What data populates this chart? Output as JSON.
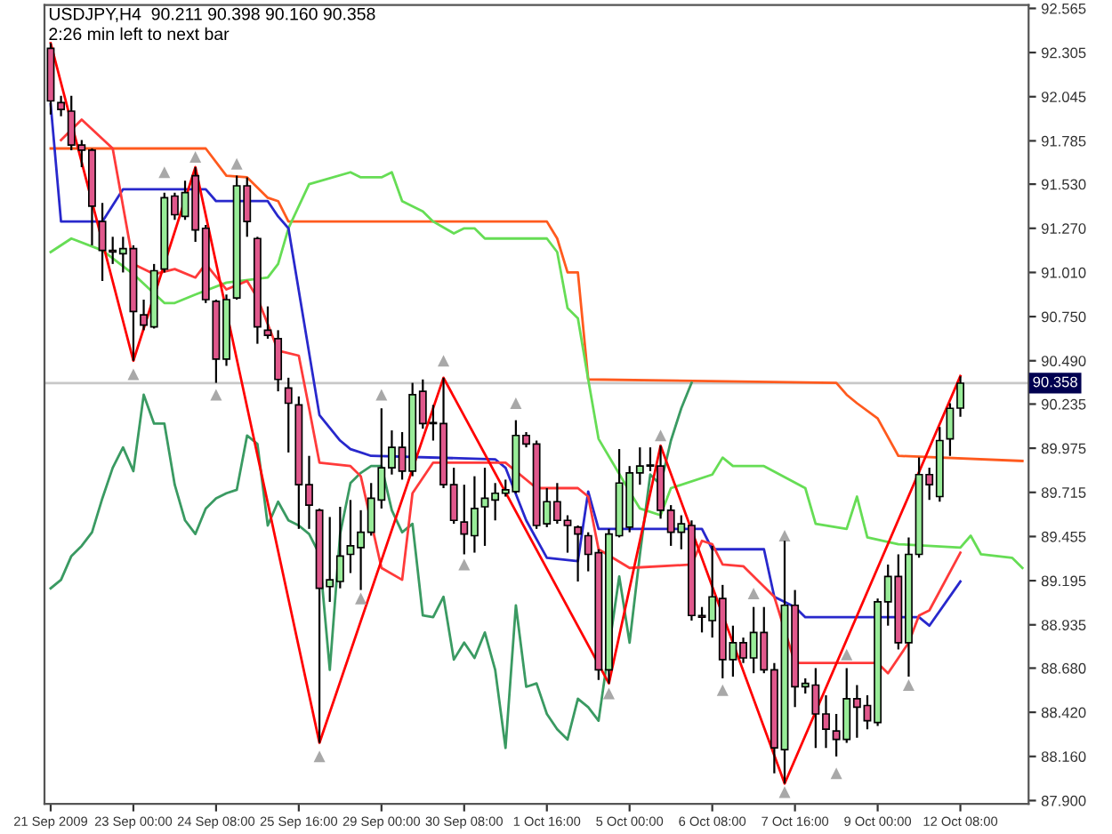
{
  "chart_data": {
    "type": "candlestick",
    "title": "USDJPY,H4  90.211 90.398 90.160 90.358",
    "annotations": [
      "2:26 min left to next bar"
    ],
    "categories": [
      "21 Sep 2009",
      null,
      null,
      null,
      null,
      null,
      null,
      null,
      "23 Sep 00:00",
      null,
      null,
      null,
      null,
      null,
      null,
      null,
      "24 Sep 08:00",
      null,
      null,
      null,
      null,
      null,
      null,
      null,
      "25 Sep 16:00",
      null,
      null,
      null,
      null,
      null,
      null,
      null,
      "29 Sep 00:00",
      null,
      null,
      null,
      null,
      null,
      null,
      null,
      "30 Sep 08:00",
      null,
      null,
      null,
      null,
      null,
      null,
      null,
      "1 Oct 16:00",
      null,
      null,
      null,
      null,
      null,
      null,
      null,
      "5 Oct 00:00",
      null,
      null,
      null,
      null,
      null,
      null,
      null,
      "6 Oct 08:00",
      null,
      null,
      null,
      null,
      null,
      null,
      null,
      "7 Oct 16:00",
      null,
      null,
      null,
      null,
      null,
      null,
      null,
      "9 Oct 00:00",
      null,
      null,
      null,
      null,
      null,
      null,
      null,
      "12 Oct 08:00",
      null,
      null,
      null,
      null,
      null,
      null
    ],
    "ohlc": [
      [
        92.33,
        92.36,
        91.94,
        92.02
      ],
      [
        92.01,
        92.05,
        91.93,
        91.97
      ],
      [
        91.96,
        92.05,
        91.73,
        91.76
      ],
      [
        91.76,
        91.79,
        91.63,
        91.73
      ],
      [
        91.73,
        91.74,
        91.17,
        91.4
      ],
      [
        91.31,
        91.42,
        90.96,
        91.14
      ],
      [
        91.14,
        91.22,
        91.06,
        91.13
      ],
      [
        91.12,
        91.22,
        91.01,
        91.15
      ],
      [
        91.15,
        91.17,
        90.49,
        90.78
      ],
      [
        90.76,
        90.85,
        90.67,
        90.7
      ],
      [
        90.69,
        91.06,
        90.68,
        91.02
      ],
      [
        91.03,
        91.48,
        91.01,
        91.45
      ],
      [
        91.46,
        91.48,
        91.32,
        91.35
      ],
      [
        91.34,
        91.55,
        91.32,
        91.48
      ],
      [
        91.58,
        91.63,
        91.19,
        91.26
      ],
      [
        91.27,
        91.29,
        90.83,
        90.85
      ],
      [
        90.84,
        90.85,
        90.36,
        90.5
      ],
      [
        90.5,
        90.88,
        90.46,
        90.85
      ],
      [
        90.86,
        91.58,
        90.85,
        91.52
      ],
      [
        91.52,
        91.57,
        91.22,
        91.31
      ],
      [
        91.21,
        91.22,
        90.59,
        90.69
      ],
      [
        90.67,
        90.81,
        90.62,
        90.64
      ],
      [
        90.62,
        90.67,
        90.31,
        90.38
      ],
      [
        90.33,
        90.39,
        89.95,
        90.24
      ],
      [
        90.23,
        90.28,
        89.5,
        89.76
      ],
      [
        89.76,
        89.93,
        89.5,
        89.64
      ],
      [
        89.61,
        89.62,
        88.24,
        89.15
      ],
      [
        89.16,
        89.57,
        89.07,
        89.2
      ],
      [
        89.19,
        89.63,
        89.15,
        89.34
      ],
      [
        89.35,
        89.67,
        89.24,
        89.4
      ],
      [
        89.39,
        89.61,
        89.14,
        89.48
      ],
      [
        89.48,
        89.77,
        89.46,
        89.68
      ],
      [
        89.67,
        90.21,
        89.62,
        89.86
      ],
      [
        89.86,
        90.08,
        89.82,
        89.98
      ],
      [
        89.98,
        90.07,
        89.79,
        89.84
      ],
      [
        89.84,
        90.36,
        89.81,
        90.29
      ],
      [
        90.31,
        90.38,
        90.09,
        90.12
      ],
      [
        90.12,
        90.23,
        90.02,
        90.12
      ],
      [
        90.12,
        90.39,
        89.74,
        89.76
      ],
      [
        89.76,
        89.86,
        89.53,
        89.55
      ],
      [
        89.54,
        89.76,
        89.35,
        89.47
      ],
      [
        89.46,
        89.81,
        89.36,
        89.62
      ],
      [
        89.63,
        89.86,
        89.4,
        89.68
      ],
      [
        89.67,
        89.77,
        89.55,
        89.71
      ],
      [
        89.71,
        89.79,
        89.69,
        89.73
      ],
      [
        89.72,
        90.14,
        89.71,
        90.05
      ],
      [
        90.05,
        90.07,
        89.98,
        90.0
      ],
      [
        90.0,
        90.02,
        89.5,
        89.52
      ],
      [
        89.53,
        89.74,
        89.51,
        89.66
      ],
      [
        89.66,
        89.77,
        89.53,
        89.55
      ],
      [
        89.55,
        89.58,
        89.36,
        89.52
      ],
      [
        89.51,
        89.52,
        89.19,
        89.47
      ],
      [
        89.46,
        89.48,
        89.25,
        89.35
      ],
      [
        89.36,
        89.38,
        88.61,
        88.67
      ],
      [
        88.67,
        89.5,
        88.59,
        89.47
      ],
      [
        89.46,
        89.97,
        89.45,
        89.77
      ],
      [
        89.51,
        89.87,
        89.48,
        89.83
      ],
      [
        89.83,
        89.98,
        89.76,
        89.87
      ],
      [
        89.87,
        89.98,
        89.84,
        89.87
      ],
      [
        89.87,
        89.99,
        89.56,
        89.61
      ],
      [
        89.61,
        89.64,
        89.4,
        89.48
      ],
      [
        89.48,
        89.58,
        89.38,
        89.53
      ],
      [
        89.52,
        89.55,
        88.96,
        88.99
      ],
      [
        88.99,
        89.04,
        88.89,
        88.98
      ],
      [
        88.96,
        89.4,
        88.86,
        89.1
      ],
      [
        89.09,
        89.17,
        88.62,
        88.73
      ],
      [
        88.73,
        88.93,
        88.63,
        88.83
      ],
      [
        88.83,
        88.86,
        88.71,
        88.74
      ],
      [
        88.74,
        89.04,
        88.65,
        88.89
      ],
      [
        88.89,
        89.04,
        88.65,
        88.67
      ],
      [
        88.67,
        88.71,
        88.06,
        88.21
      ],
      [
        88.2,
        89.43,
        88.0,
        89.05
      ],
      [
        89.05,
        89.14,
        88.45,
        88.57
      ],
      [
        88.57,
        88.62,
        88.53,
        88.59
      ],
      [
        88.58,
        88.68,
        88.21,
        88.41
      ],
      [
        88.41,
        88.52,
        88.21,
        88.32
      ],
      [
        88.31,
        88.41,
        88.16,
        88.26
      ],
      [
        88.26,
        88.68,
        88.24,
        88.5
      ],
      [
        88.5,
        88.58,
        88.27,
        88.45
      ],
      [
        88.46,
        88.52,
        88.32,
        88.37
      ],
      [
        88.36,
        89.09,
        88.34,
        89.07
      ],
      [
        89.07,
        89.29,
        88.93,
        89.22
      ],
      [
        89.22,
        89.35,
        88.79,
        88.83
      ],
      [
        88.83,
        89.45,
        88.63,
        89.35
      ],
      [
        89.35,
        89.92,
        89.33,
        89.82
      ],
      [
        89.82,
        89.86,
        89.67,
        89.76
      ],
      [
        89.69,
        90.1,
        89.66,
        90.02
      ],
      [
        90.03,
        90.24,
        89.93,
        90.21
      ],
      [
        90.211,
        90.398,
        90.16,
        90.358
      ],
      null,
      null,
      null,
      null,
      null,
      null
    ],
    "colors": [
      "#e0588c",
      "#e0588c",
      "#e0588c",
      "#e0588c",
      "#e0588c",
      "#e0588c",
      "#e0588c",
      "#98ec98",
      "#e0588c",
      "#e0588c",
      "#98ec98",
      "#98ec98",
      "#e0588c",
      "#98ec98",
      "#e0588c",
      "#e0588c",
      "#e0588c",
      "#98ec98",
      "#98ec98",
      "#e0588c",
      "#e0588c",
      "#e0588c",
      "#e0588c",
      "#e0588c",
      "#e0588c",
      "#e0588c",
      "#e0588c",
      "#98ec98",
      "#98ec98",
      "#98ec98",
      "#98ec98",
      "#98ec98",
      "#98ec98",
      "#98ec98",
      "#e0588c",
      "#98ec98",
      "#e0588c",
      "#e0588c",
      "#e0588c",
      "#e0588c",
      "#e0588c",
      "#98ec98",
      "#98ec98",
      "#98ec98",
      "#98ec98",
      "#98ec98",
      "#e0588c",
      "#e0588c",
      "#98ec98",
      "#e0588c",
      "#e0588c",
      "#e0588c",
      "#e0588c",
      "#e0588c",
      "#98ec98",
      "#98ec98",
      "#98ec98",
      "#98ec98",
      "#98ec98",
      "#e0588c",
      "#e0588c",
      "#98ec98",
      "#e0588c",
      "#e0588c",
      "#98ec98",
      "#e0588c",
      "#98ec98",
      "#e0588c",
      "#98ec98",
      "#e0588c",
      "#e0588c",
      "#98ec98",
      "#e0588c",
      "#98ec98",
      "#e0588c",
      "#e0588c",
      "#e0588c",
      "#98ec98",
      "#e0588c",
      "#e0588c",
      "#98ec98",
      "#98ec98",
      "#e0588c",
      "#98ec98",
      "#98ec98",
      "#e0588c",
      "#98ec98",
      "#98ec98",
      "#98ec98",
      null,
      null,
      null,
      null,
      null,
      null
    ],
    "series": [
      {
        "type": "line",
        "color": "#ff5a1e",
        "values": [
          91.74,
          null,
          null,
          null,
          null,
          null,
          null,
          null,
          null,
          null,
          null,
          null,
          null,
          null,
          null,
          91.74,
          null,
          91.58,
          null,
          91.57,
          null,
          91.45,
          91.43,
          91.31,
          null,
          null,
          null,
          null,
          null,
          null,
          null,
          null,
          null,
          null,
          null,
          null,
          null,
          91.31,
          null,
          null,
          null,
          null,
          null,
          null,
          null,
          null,
          null,
          null,
          91.31,
          91.21,
          91.01,
          91.01,
          90.38,
          null,
          null,
          null,
          null,
          null,
          null,
          null,
          null,
          null,
          null,
          null,
          null,
          null,
          null,
          null,
          null,
          null,
          null,
          null,
          null,
          null,
          null,
          null,
          90.36,
          90.29,
          90.24,
          null,
          90.15,
          null,
          89.93,
          null,
          null,
          null,
          null,
          null,
          null,
          null,
          null,
          null,
          null,
          null,
          89.9
        ]
      },
      {
        "type": "line",
        "color": "#66dd55",
        "values": [
          91.13,
          null,
          91.21,
          null,
          null,
          91.14,
          null,
          null,
          91.0,
          null,
          null,
          90.83,
          90.83,
          null,
          90.88,
          null,
          null,
          90.95,
          null,
          null,
          null,
          90.98,
          91.06,
          91.27,
          null,
          91.53,
          null,
          null,
          null,
          91.6,
          91.57,
          null,
          91.57,
          91.6,
          91.43,
          null,
          91.37,
          91.31,
          null,
          91.24,
          91.27,
          91.27,
          91.21,
          null,
          null,
          null,
          null,
          null,
          91.21,
          91.13,
          90.8,
          90.74,
          90.38,
          90.03,
          null,
          null,
          89.72,
          89.62,
          null,
          89.58,
          89.74,
          null,
          null,
          null,
          89.82,
          89.92,
          89.87,
          null,
          null,
          89.87,
          null,
          null,
          null,
          89.74,
          89.53,
          null,
          null,
          89.5,
          89.69,
          89.45,
          null,
          null,
          89.41,
          null,
          null,
          null,
          null,
          null,
          89.39,
          89.46,
          89.35,
          null,
          null,
          89.33,
          89.27
        ]
      },
      {
        "type": "line",
        "color": "#3a9a62",
        "values": [
          89.15,
          89.2,
          89.34,
          89.4,
          89.48,
          89.68,
          89.86,
          89.98,
          89.84,
          90.29,
          90.12,
          90.12,
          89.76,
          89.55,
          89.47,
          89.62,
          89.68,
          89.71,
          89.73,
          90.05,
          90.0,
          89.52,
          89.66,
          89.55,
          89.52,
          89.47,
          89.35,
          88.67,
          89.47,
          89.77,
          89.83,
          89.87,
          89.87,
          89.61,
          89.48,
          89.53,
          88.99,
          88.98,
          89.1,
          88.73,
          88.83,
          88.74,
          88.89,
          88.67,
          88.21,
          89.05,
          88.57,
          88.59,
          88.41,
          88.32,
          88.26,
          88.5,
          88.45,
          88.37,
          null,
          89.22,
          88.83,
          89.35,
          89.82,
          89.76,
          90.02,
          90.21,
          90.36,
          null,
          null,
          null,
          null,
          null,
          null,
          null,
          null,
          null,
          null,
          null,
          null,
          null,
          null,
          null,
          null,
          null,
          null,
          null,
          null,
          null,
          null,
          null,
          null,
          null,
          null,
          null,
          null,
          null,
          null,
          null,
          null
        ]
      },
      {
        "type": "line",
        "color": "#2828cc",
        "values": [
          92.0,
          91.31,
          null,
          null,
          null,
          91.31,
          null,
          91.5,
          null,
          null,
          null,
          null,
          null,
          null,
          null,
          91.5,
          91.43,
          null,
          null,
          null,
          null,
          91.43,
          91.34,
          91.27,
          null,
          null,
          90.17,
          null,
          90.02,
          89.97,
          null,
          89.93,
          null,
          null,
          null,
          null,
          null,
          null,
          null,
          null,
          null,
          null,
          null,
          89.91,
          89.86,
          null,
          89.55,
          null,
          89.33,
          null,
          null,
          89.31,
          89.72,
          89.5,
          null,
          null,
          null,
          null,
          null,
          null,
          null,
          null,
          null,
          89.5,
          89.38,
          null,
          null,
          null,
          null,
          89.38,
          89.1,
          null,
          89.04,
          88.98,
          null,
          null,
          null,
          null,
          null,
          null,
          null,
          null,
          null,
          null,
          88.98,
          88.93,
          null,
          null,
          89.19,
          null,
          null,
          null,
          null,
          null,
          null
        ]
      },
      {
        "type": "line",
        "color": "#ff3a3a",
        "values": [
          null,
          91.79,
          null,
          91.91,
          null,
          null,
          91.74,
          null,
          91.06,
          null,
          91.0,
          null,
          91.03,
          null,
          90.98,
          91.06,
          null,
          90.91,
          null,
          90.96,
          90.86,
          null,
          90.55,
          null,
          90.52,
          90.21,
          89.89,
          null,
          null,
          89.87,
          89.81,
          null,
          89.27,
          null,
          89.2,
          89.71,
          null,
          89.89,
          null,
          null,
          null,
          null,
          null,
          null,
          89.89,
          null,
          null,
          89.74,
          null,
          null,
          null,
          89.74,
          89.69,
          89.38,
          null,
          null,
          89.27,
          null,
          null,
          null,
          null,
          null,
          89.29,
          89.43,
          89.41,
          89.29,
          null,
          89.28,
          null,
          null,
          89.1,
          null,
          88.71,
          null,
          null,
          null,
          null,
          null,
          null,
          null,
          88.71,
          88.65,
          null,
          88.83,
          88.99,
          89.02,
          null,
          null,
          89.36,
          null,
          null,
          null,
          null,
          null,
          null
        ]
      },
      {
        "type": "line",
        "color": "#ff0000",
        "values": [
          92.36,
          null,
          null,
          null,
          null,
          null,
          null,
          null,
          90.49,
          null,
          null,
          null,
          null,
          null,
          91.63,
          null,
          null,
          null,
          null,
          null,
          null,
          null,
          null,
          null,
          null,
          null,
          88.24,
          null,
          null,
          null,
          null,
          null,
          null,
          null,
          null,
          null,
          null,
          null,
          90.39,
          null,
          null,
          null,
          null,
          null,
          null,
          null,
          null,
          null,
          null,
          null,
          null,
          null,
          null,
          null,
          88.59,
          null,
          null,
          null,
          null,
          89.99,
          null,
          null,
          null,
          null,
          null,
          null,
          null,
          null,
          null,
          null,
          null,
          88.0,
          null,
          null,
          null,
          null,
          null,
          null,
          null,
          null,
          null,
          null,
          null,
          null,
          null,
          null,
          null,
          null,
          90.4,
          null,
          null,
          null,
          null,
          null,
          null
        ]
      },
      {
        "type": "scatter",
        "color": "#a8a8a8",
        "marker": "triangle",
        "values": [
          null,
          null,
          null,
          null,
          null,
          null,
          null,
          null,
          null,
          null,
          null,
          91.6,
          null,
          null,
          91.69,
          null,
          null,
          null,
          91.65,
          null,
          null,
          null,
          null,
          null,
          null,
          null,
          null,
          null,
          null,
          null,
          null,
          null,
          90.29,
          null,
          null,
          null,
          null,
          null,
          90.49,
          null,
          null,
          null,
          null,
          null,
          null,
          90.24,
          null,
          null,
          null,
          null,
          null,
          null,
          null,
          null,
          null,
          null,
          null,
          null,
          null,
          90.05,
          null,
          null,
          null,
          null,
          null,
          null,
          null,
          null,
          89.12,
          null,
          null,
          89.46,
          null,
          null,
          null,
          null,
          null,
          88.76,
          null,
          null,
          null,
          null,
          null,
          null,
          null,
          null,
          null,
          null,
          null,
          null,
          null,
          null,
          null,
          null,
          null
        ]
      },
      {
        "type": "scatter",
        "color": "#a8a8a8",
        "marker": "triangle",
        "values": [
          null,
          null,
          null,
          null,
          null,
          null,
          null,
          null,
          90.41,
          null,
          null,
          null,
          null,
          null,
          null,
          null,
          90.29,
          null,
          null,
          null,
          null,
          null,
          null,
          null,
          null,
          null,
          88.16,
          null,
          null,
          null,
          89.09,
          null,
          null,
          null,
          null,
          null,
          null,
          null,
          null,
          null,
          89.29,
          null,
          null,
          null,
          null,
          null,
          null,
          null,
          null,
          null,
          null,
          null,
          null,
          null,
          88.53,
          null,
          null,
          null,
          null,
          null,
          null,
          null,
          null,
          null,
          null,
          88.55,
          null,
          null,
          null,
          null,
          null,
          87.95,
          null,
          null,
          null,
          null,
          88.06,
          null,
          null,
          null,
          null,
          null,
          null,
          88.58,
          null,
          null,
          null,
          null,
          null,
          null,
          null,
          null,
          null,
          null,
          null
        ]
      }
    ],
    "ref_lines": [
      {
        "axis": "y",
        "value": 90.358,
        "label": "90.358",
        "color": "#c8c8c8"
      }
    ],
    "ylim": [
      87.88,
      92.585
    ],
    "yticks": [
      92.565,
      92.305,
      92.045,
      91.785,
      {
        "value": 91.53,
        "label": "91.530"
      },
      {
        "value": 91.27,
        "label": "91.270"
      },
      {
        "value": 91.01,
        "label": "91.010"
      },
      {
        "value": 90.75,
        "label": "90.750"
      },
      {
        "value": 90.49,
        "label": "90.490"
      },
      90.235,
      89.975,
      89.715,
      89.455,
      89.195,
      88.935,
      {
        "value": 88.68,
        "label": "88.680"
      },
      {
        "value": 88.42,
        "label": "88.420"
      },
      {
        "value": 88.16,
        "label": "88.160"
      },
      {
        "value": 87.9,
        "label": "87.900"
      }
    ]
  }
}
